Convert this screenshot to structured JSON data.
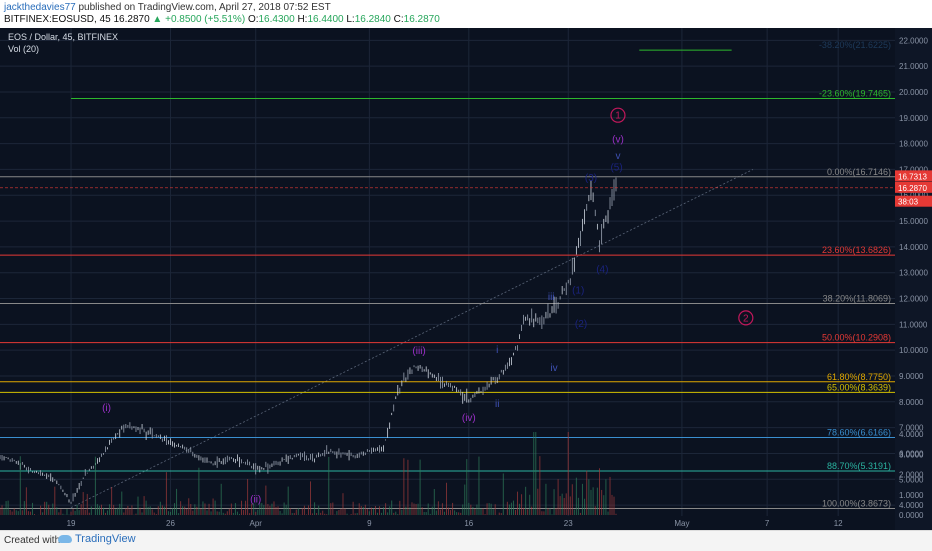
{
  "header": {
    "user": "jackthedavies77",
    "published": " published on TradingView.com, April 27, 2018 07:52 EST",
    "symbol": "BITFINEX:EOSUSD, 45",
    "last": "16.2870",
    "change": "▲ +0.8500 (+5.51%)",
    "o_label": "O:",
    "o": "16.4300",
    "h_label": "H:",
    "h": "16.4400",
    "l_label": "L:",
    "l": "16.2840",
    "c_label": "C:",
    "c": "16.2870"
  },
  "footer": {
    "created": "Created with",
    "brand": "TradingView"
  },
  "chart_data": {
    "type": "candlestick",
    "title": "EOS / Dollar, 45, BITFINEX",
    "indicator": "Vol (20)",
    "x_ticks": [
      "19",
      "26",
      "Apr",
      "9",
      "16",
      "23",
      "May",
      "7",
      "12"
    ],
    "x_range_days": [
      -17,
      46
    ],
    "x_tick_days": [
      -12,
      -5,
      1,
      9,
      16,
      23,
      31,
      37,
      42
    ],
    "y_ticks": [
      "22.0000",
      "21.0000",
      "20.0000",
      "19.0000",
      "18.0000",
      "17.0000",
      "16.0000",
      "15.0000",
      "14.0000",
      "13.0000",
      "12.0000",
      "11.0000",
      "10.0000",
      "9.0000",
      "8.0000",
      "7.0000",
      "6.0000",
      "5.0000",
      "4.0000"
    ],
    "y_range": [
      3.5,
      22.4
    ],
    "volume_ticks": [
      "4.0000",
      "3.0000",
      "2.0000",
      "1.0000",
      "0.0000"
    ],
    "price_path": [
      [
        -17,
        5.9
      ],
      [
        -16,
        5.7
      ],
      [
        -15,
        5.4
      ],
      [
        -14,
        5.2
      ],
      [
        -13,
        4.9
      ],
      [
        -12,
        4.1
      ],
      [
        -11,
        5.2
      ],
      [
        -10,
        5.8
      ],
      [
        -9,
        6.6
      ],
      [
        -8,
        7.1
      ],
      [
        -7,
        6.9
      ],
      [
        -6,
        6.7
      ],
      [
        -5,
        6.4
      ],
      [
        -4,
        6.2
      ],
      [
        -3,
        5.8
      ],
      [
        -2,
        5.6
      ],
      [
        -1,
        5.8
      ],
      [
        0,
        5.7
      ],
      [
        1,
        5.4
      ],
      [
        2,
        5.5
      ],
      [
        3,
        5.8
      ],
      [
        4,
        5.9
      ],
      [
        5,
        5.8
      ],
      [
        6,
        6.1
      ],
      [
        7,
        6.0
      ],
      [
        8,
        5.9
      ],
      [
        9,
        6.1
      ],
      [
        10,
        6.2
      ],
      [
        11,
        8.5
      ],
      [
        12,
        9.3
      ],
      [
        13,
        9.2
      ],
      [
        14,
        8.8
      ],
      [
        15,
        8.5
      ],
      [
        16,
        8.1
      ],
      [
        17,
        8.5
      ],
      [
        18,
        8.9
      ],
      [
        19,
        9.6
      ],
      [
        20,
        11.2
      ],
      [
        21,
        11.1
      ],
      [
        22,
        11.6
      ],
      [
        23,
        12.6
      ],
      [
        24,
        14.8
      ],
      [
        24.6,
        16.3
      ],
      [
        25.2,
        14.3
      ],
      [
        25.8,
        15.3
      ],
      [
        26.5,
        16.7
      ]
    ],
    "fib_levels": [
      {
        "label": "-23.60%(19.7465)",
        "value": 19.7465,
        "color": "#2db82d"
      },
      {
        "label": "0.00%(16.7146)",
        "value": 16.7146,
        "color": "#888888"
      },
      {
        "label": "23.60%(13.6826)",
        "value": 13.6826,
        "color": "#e53935"
      },
      {
        "label": "38.20%(11.8069)",
        "value": 11.8069,
        "color": "#888888"
      },
      {
        "label": "50.00%(10.2908)",
        "value": 10.2908,
        "color": "#e53935"
      },
      {
        "label": "61.80%(8.7750)",
        "value": 8.775,
        "color": "#e0a800"
      },
      {
        "label": "65.00%(8.3639)",
        "value": 8.3639,
        "color": "#d4c000"
      },
      {
        "label": "78.60%(6.6166)",
        "value": 6.6166,
        "color": "#3a8fd0"
      },
      {
        "label": "88.70%(5.3191)",
        "value": 5.3191,
        "color": "#2bb3a0"
      },
      {
        "label": "100.00%(3.8673)",
        "value": 3.8673,
        "color": "#888888"
      }
    ],
    "top_fib": {
      "label": "-38.20%(21.6225)",
      "value": 21.6225,
      "color": "#2db82d"
    },
    "wave_labels": [
      {
        "text": "(i)",
        "day": -9.5,
        "price": 7.65,
        "color": "#9b30c8"
      },
      {
        "text": "(ii)",
        "day": 1,
        "price": 4.1,
        "color": "#9b30c8"
      },
      {
        "text": "(iii)",
        "day": 12.5,
        "price": 9.85,
        "color": "#9b30c8"
      },
      {
        "text": "(iv)",
        "day": 16,
        "price": 7.25,
        "color": "#9b30c8"
      },
      {
        "text": "(v)",
        "day": 26.5,
        "price": 18.05,
        "color": "#9b30c8"
      },
      {
        "text": "v",
        "day": 26.5,
        "price": 17.4,
        "color": "#3f51b5"
      },
      {
        "text": "i",
        "day": 18,
        "price": 9.9,
        "color": "#3f51b5"
      },
      {
        "text": "ii",
        "day": 18,
        "price": 7.8,
        "color": "#3f51b5"
      },
      {
        "text": "iii",
        "day": 21.8,
        "price": 11.95,
        "color": "#3f51b5"
      },
      {
        "text": "iv",
        "day": 22,
        "price": 9.2,
        "color": "#3f51b5"
      },
      {
        "text": "(1)",
        "day": 23.7,
        "price": 12.2,
        "color": "#1a237e"
      },
      {
        "text": "(2)",
        "day": 23.9,
        "price": 10.9,
        "color": "#1a237e"
      },
      {
        "text": "(3)",
        "day": 24.6,
        "price": 16.55,
        "color": "#1a237e"
      },
      {
        "text": "(4)",
        "day": 25.4,
        "price": 13.0,
        "color": "#1a237e"
      },
      {
        "text": "(5)",
        "day": 26.4,
        "price": 16.95,
        "color": "#1a237e"
      }
    ],
    "circle_labels": [
      {
        "text": "1",
        "day": 26.5,
        "price": 19.1,
        "color": "#c2185b"
      },
      {
        "text": "2",
        "day": 35.5,
        "price": 11.25,
        "color": "#c2185b"
      }
    ],
    "price_tags": [
      {
        "text": "16.7313",
        "value": 16.7313,
        "color": "#e53935"
      },
      {
        "text": "16.2870",
        "value": 16.287,
        "color": "#e53935"
      },
      {
        "text": "38:03",
        "value": 15.75,
        "color": "#e53935"
      }
    ],
    "trendline": {
      "from": [
        -12,
        3.9
      ],
      "to": [
        36,
        17.0
      ]
    },
    "grid": true
  }
}
